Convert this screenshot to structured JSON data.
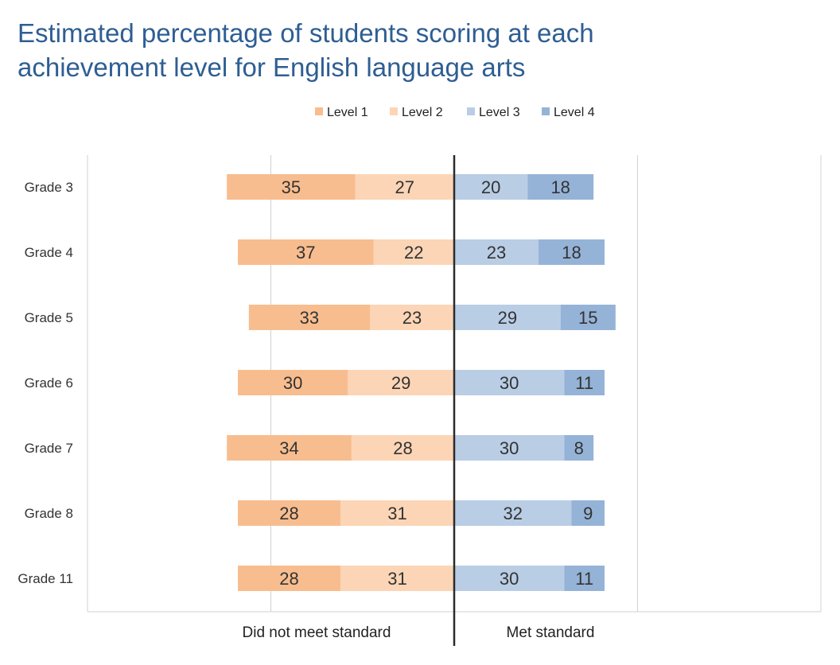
{
  "chart_data": {
    "type": "bar",
    "orientation": "horizontal",
    "stacked": "diverging",
    "title": "Estimated percentage of students scoring at each achievement level for English language arts",
    "categories": [
      "Grade 3",
      "Grade 4",
      "Grade 5",
      "Grade 6",
      "Grade 7",
      "Grade 8",
      "Grade 11"
    ],
    "series": [
      {
        "name": "Level 1",
        "color": "#f8bd8f",
        "side": "left",
        "values": [
          35,
          37,
          33,
          30,
          34,
          28,
          28
        ]
      },
      {
        "name": "Level 2",
        "color": "#fbd5b5",
        "side": "left",
        "values": [
          27,
          22,
          23,
          29,
          28,
          31,
          31
        ]
      },
      {
        "name": "Level 3",
        "color": "#b9cde5",
        "side": "right",
        "values": [
          20,
          23,
          29,
          30,
          30,
          32,
          30
        ]
      },
      {
        "name": "Level 4",
        "color": "#95b3d7",
        "side": "right",
        "values": [
          18,
          18,
          15,
          11,
          8,
          9,
          11
        ]
      }
    ],
    "xlim": [
      -100,
      100
    ],
    "gridlines_at": [
      -100,
      -50,
      50,
      100
    ],
    "axis_captions": {
      "left": "Did not meet standard",
      "right": "Met standard"
    },
    "legend_position": "top-center",
    "grid": true
  }
}
